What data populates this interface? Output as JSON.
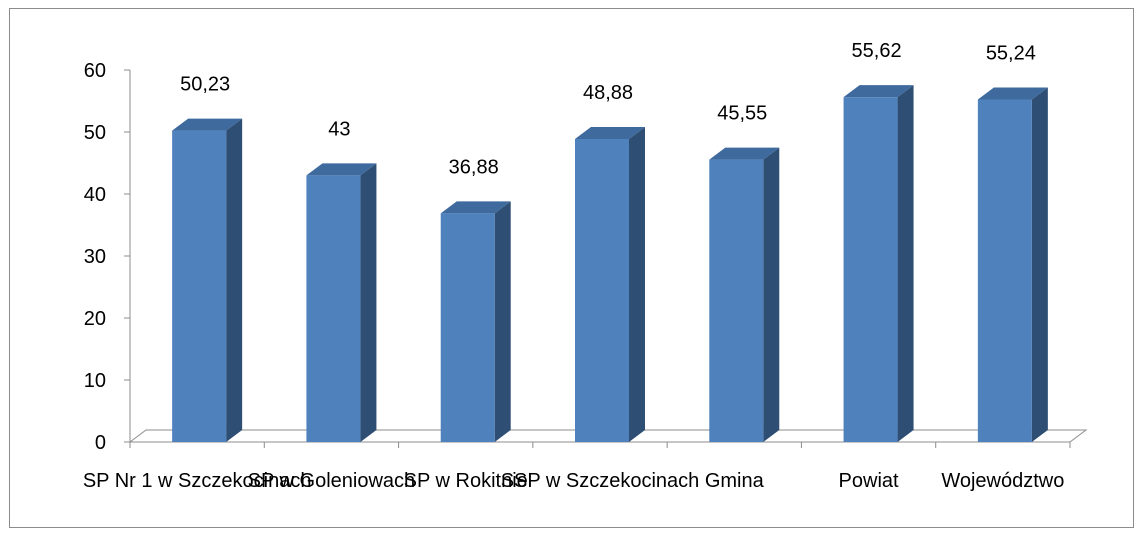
{
  "chart_data": {
    "type": "bar",
    "style": "3d-column",
    "categories": [
      "SP Nr 1 w Szczekocinach",
      "SP w Goleniowach",
      "SP w Rokitnie",
      "SSP w Szczekocinach",
      "Gmina",
      "Powiat",
      "Województwo"
    ],
    "values": [
      50.23,
      43,
      36.88,
      48.88,
      45.55,
      55.62,
      55.24
    ],
    "data_labels": [
      "50,23",
      "43",
      "36,88",
      "48,88",
      "45,55",
      "55,62",
      "55,24"
    ],
    "y_ticks": [
      0,
      10,
      20,
      30,
      40,
      50,
      60
    ],
    "ylim": [
      0,
      60
    ],
    "title": "",
    "xlabel": "",
    "ylabel": "",
    "grid": false,
    "legend": "none",
    "colors": {
      "bar_front": "#4F81BD",
      "bar_side": "#2E4E74",
      "bar_top": "#3F6A9E",
      "axis": "#8C8C8C",
      "frame": "#8C8C8C"
    }
  }
}
